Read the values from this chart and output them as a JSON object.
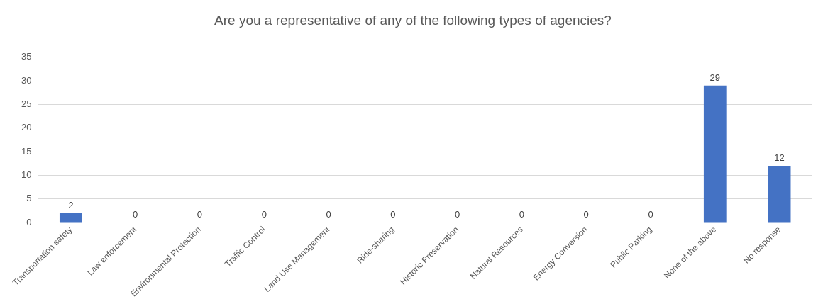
{
  "chart_data": {
    "type": "bar",
    "title": "Are you a representative of any of the following types of agencies?",
    "categories": [
      "Transportation safety",
      "Law enforcement",
      "Environmental Protection",
      "Traffic Control",
      "Land Use Management",
      "Ride-sharing",
      "Historic Preservation",
      "Natural Resources",
      "Energy Conversion",
      "Public Parking",
      "None of the above",
      "No response"
    ],
    "values": [
      2,
      0,
      0,
      0,
      0,
      0,
      0,
      0,
      0,
      0,
      29,
      12
    ],
    "color": "#4472c4",
    "ylim": [
      0,
      35
    ],
    "yticks": [
      0,
      5,
      10,
      15,
      20,
      25,
      30,
      35
    ],
    "grid": "y",
    "data_labels": true
  }
}
